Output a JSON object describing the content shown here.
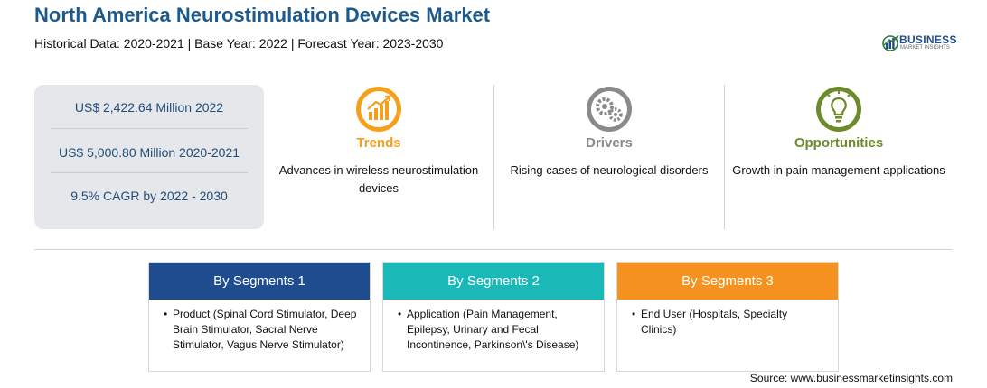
{
  "header": {
    "title": "North America Neurostimulation Devices Market",
    "subtitle": "Historical Data: 2020-2021 | Base Year: 2022 | Forecast Year: 2023-2030"
  },
  "logo": {
    "main": "BUSINESS",
    "sub": "MARKET INSIGHTS",
    "icon": "bar-chart-globe-icon",
    "color": "#1f4d8a"
  },
  "stats": [
    "US$ 2,422.64 Million 2022",
    "US$ 5,000.80 Million 2020-2021",
    "9.5% CAGR by 2022 - 2030"
  ],
  "factors": [
    {
      "heading": "Trends",
      "text": "Advances in wireless neurostimulation devices",
      "icon": "growth-chart-icon",
      "color": "#f5a01c"
    },
    {
      "heading": "Drivers",
      "text": "Rising cases of neurological disorders",
      "icon": "gears-icon",
      "color": "#8a8a8a"
    },
    {
      "heading": "Opportunities",
      "text": "Growth in pain management applications",
      "icon": "lightbulb-icon",
      "color": "#6e8b2c"
    }
  ],
  "segments": [
    {
      "heading": "By Segments 1",
      "bullet": "•",
      "text": "Product (Spinal Cord Stimulator, Deep Brain Stimulator, Sacral Nerve Stimulator, Vagus Nerve Stimulator)",
      "color": "#1e4c8e"
    },
    {
      "heading": "By Segments 2",
      "bullet": "•",
      "text": "Application (Pain Management, Epilepsy, Urinary and Fecal Incontinence, Parkinson\\'s Disease)",
      "color": "#1bb8b8"
    },
    {
      "heading": "By Segments 3",
      "bullet": "•",
      "text": "End User (Hospitals, Specialty Clinics)",
      "color": "#f5921f"
    }
  ],
  "source": "Source: www.businessmarketinsights.com"
}
